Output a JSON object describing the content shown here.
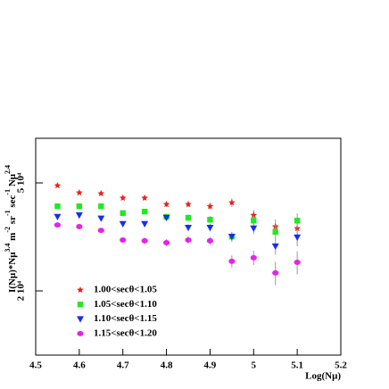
{
  "chart_data": {
    "type": "scatter",
    "x": [
      4.55,
      4.6,
      4.65,
      4.7,
      4.75,
      4.8,
      4.85,
      4.9,
      4.95,
      5,
      5.05,
      5.1
    ],
    "xlabel": "Log(Nμ)",
    "ylabel": [
      "I(Nμ)*Nμ",
      "3.4",
      " m",
      "-2",
      " sr",
      "-1",
      " sec",
      "-1",
      " Nμ",
      "2.4"
    ],
    "xlim": [
      4.5,
      5.2
    ],
    "xticks": [
      4.5,
      4.6,
      4.7,
      4.8,
      4.9,
      5,
      5.1,
      5.2
    ],
    "ylim": [
      11600,
      73000
    ],
    "ylog": true,
    "yticks": [
      {
        "value": 20000,
        "label": "2 10⁴"
      },
      {
        "value": 50000,
        "label": "5 10⁴"
      }
    ],
    "series": [
      {
        "name": "1.00<secθ<1.05",
        "color": "#e8211a",
        "marker": "star",
        "values": [
          48900,
          46000,
          45700,
          44000,
          44000,
          41700,
          41700,
          41000,
          42300,
          38000,
          34500,
          34000
        ],
        "errors": [
          700,
          700,
          700,
          800,
          800,
          1000,
          1000,
          1200,
          1500,
          1800,
          2200,
          2500
        ]
      },
      {
        "name": "1.05<secθ<1.10",
        "color": "#22e822",
        "marker": "square",
        "values": [
          41000,
          41000,
          41000,
          38700,
          39200,
          37500,
          37200,
          36600,
          31700,
          36300,
          33000,
          36300
        ],
        "errors": [
          600,
          600,
          600,
          700,
          800,
          900,
          1000,
          1100,
          1300,
          1600,
          2000,
          2300
        ]
      },
      {
        "name": "1.10<secθ<1.15",
        "color": "#1a2ee8",
        "marker": "triangle",
        "values": [
          37500,
          38000,
          37000,
          35300,
          35300,
          37200,
          34200,
          34200,
          31700,
          34000,
          29200,
          31500
        ],
        "errors": [
          600,
          600,
          600,
          700,
          800,
          900,
          1000,
          1100,
          1300,
          1600,
          2000,
          2300
        ]
      },
      {
        "name": "1.15<secθ<1.20",
        "color": "#e822e8",
        "marker": "circle",
        "values": [
          35000,
          34500,
          33400,
          30800,
          30600,
          30100,
          30800,
          30600,
          25700,
          26500,
          23300,
          25500
        ],
        "errors": [
          600,
          600,
          600,
          700,
          800,
          900,
          1000,
          1100,
          1300,
          1600,
          2300,
          2500
        ]
      }
    ]
  }
}
